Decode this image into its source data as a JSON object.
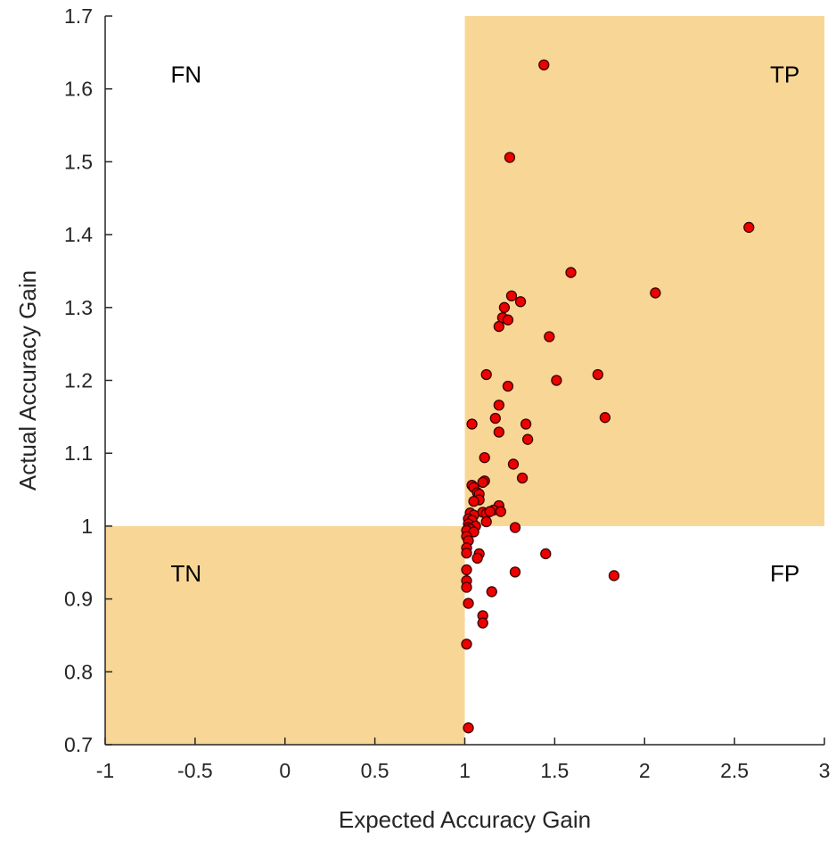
{
  "chart_data": {
    "type": "scatter",
    "title": "",
    "xlabel": "Expected  Accuracy Gain",
    "ylabel": "Actual Accuracy Gain",
    "xlim": [
      -1,
      3
    ],
    "ylim": [
      0.7,
      1.7
    ],
    "xticks": [
      -1,
      -0.5,
      0,
      0.5,
      1,
      1.5,
      2,
      2.5,
      3
    ],
    "xtick_labels": [
      "-1",
      "-0.5",
      "0",
      "0.5",
      "1",
      "1.5",
      "2",
      "2.5",
      "3"
    ],
    "yticks": [
      0.7,
      0.8,
      0.9,
      1.0,
      1.1,
      1.2,
      1.3,
      1.4,
      1.5,
      1.6,
      1.7
    ],
    "ytick_labels": [
      "0.7",
      "0.8",
      "0.9",
      "1",
      "1.1",
      "1.2",
      "1.3",
      "1.4",
      "1.5",
      "1.6",
      "1.7"
    ],
    "grid": false,
    "colors": {
      "region_fill": "#f8d695",
      "marker_fill": "#ee0000",
      "marker_edge": "#3a0000",
      "axis": "#262626"
    },
    "regions": [
      {
        "x": [
          1,
          3
        ],
        "y": [
          1.0,
          1.7
        ]
      },
      {
        "x": [
          -1,
          1
        ],
        "y": [
          0.7,
          1.0
        ]
      }
    ],
    "quadrant_labels": [
      {
        "text": "FN",
        "x": -0.55,
        "y": 1.62
      },
      {
        "text": "TP",
        "x": 2.78,
        "y": 1.62
      },
      {
        "text": "TN",
        "x": -0.55,
        "y": 0.935
      },
      {
        "text": "FP",
        "x": 2.78,
        "y": 0.935
      }
    ],
    "series": [
      {
        "points": [
          [
            1.44,
            1.633
          ],
          [
            1.25,
            1.506
          ],
          [
            2.58,
            1.41
          ],
          [
            1.59,
            1.348
          ],
          [
            2.06,
            1.32
          ],
          [
            1.26,
            1.316
          ],
          [
            1.31,
            1.308
          ],
          [
            1.22,
            1.3
          ],
          [
            1.21,
            1.286
          ],
          [
            1.24,
            1.283
          ],
          [
            1.19,
            1.274
          ],
          [
            1.47,
            1.26
          ],
          [
            1.12,
            1.208
          ],
          [
            1.74,
            1.208
          ],
          [
            1.51,
            1.2
          ],
          [
            1.24,
            1.192
          ],
          [
            1.19,
            1.166
          ],
          [
            1.78,
            1.149
          ],
          [
            1.17,
            1.148
          ],
          [
            1.04,
            1.14
          ],
          [
            1.34,
            1.14
          ],
          [
            1.19,
            1.129
          ],
          [
            1.35,
            1.119
          ],
          [
            1.11,
            1.094
          ],
          [
            1.27,
            1.085
          ],
          [
            1.32,
            1.066
          ],
          [
            1.11,
            1.062
          ],
          [
            1.1,
            1.06
          ],
          [
            1.04,
            1.056
          ],
          [
            1.05,
            1.053
          ],
          [
            1.07,
            1.046
          ],
          [
            1.08,
            1.044
          ],
          [
            1.08,
            1.036
          ],
          [
            1.05,
            1.034
          ],
          [
            1.19,
            1.028
          ],
          [
            1.16,
            1.022
          ],
          [
            1.2,
            1.02
          ],
          [
            1.1,
            1.019
          ],
          [
            1.03,
            1.018
          ],
          [
            1.05,
            1.015
          ],
          [
            1.12,
            1.017
          ],
          [
            1.14,
            1.02
          ],
          [
            1.02,
            1.01
          ],
          [
            1.04,
            1.008
          ],
          [
            1.12,
            1.006
          ],
          [
            1.02,
            1.003
          ],
          [
            1.06,
            1.0
          ],
          [
            1.02,
            0.998
          ],
          [
            1.28,
            0.998
          ],
          [
            1.03,
            0.996
          ],
          [
            1.01,
            0.994
          ],
          [
            1.05,
            0.992
          ],
          [
            1.01,
            0.986
          ],
          [
            1.02,
            0.98
          ],
          [
            1.01,
            0.97
          ],
          [
            1.01,
            0.963
          ],
          [
            1.45,
            0.962
          ],
          [
            1.08,
            0.962
          ],
          [
            1.07,
            0.956
          ],
          [
            1.01,
            0.94
          ],
          [
            1.28,
            0.937
          ],
          [
            1.83,
            0.932
          ],
          [
            1.01,
            0.925
          ],
          [
            1.01,
            0.916
          ],
          [
            1.15,
            0.91
          ],
          [
            1.02,
            0.894
          ],
          [
            1.1,
            0.877
          ],
          [
            1.1,
            0.867
          ],
          [
            1.01,
            0.838
          ],
          [
            1.02,
            0.723
          ]
        ]
      }
    ]
  }
}
